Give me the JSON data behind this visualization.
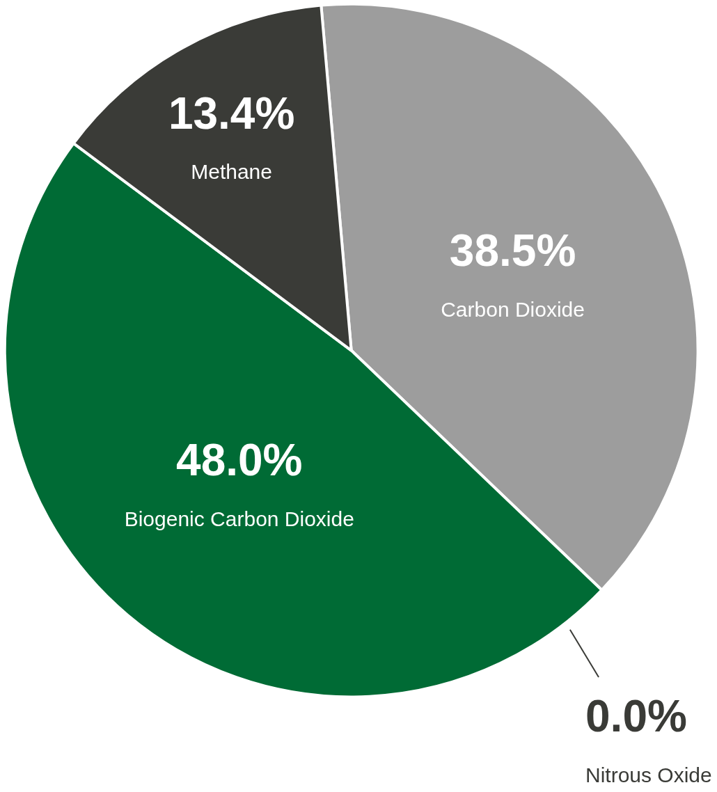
{
  "chart_data": {
    "type": "pie",
    "categories": [
      "Carbon Dioxide",
      "Nitrous Oxide",
      "Biogenic Carbon Dioxide",
      "Methane"
    ],
    "values": [
      38.5,
      0.0,
      48.0,
      13.4
    ],
    "value_labels": [
      "38.5%",
      "0.0%",
      "48.0%",
      "13.4%"
    ],
    "colors": [
      "#9d9d9d",
      "#3a3b37",
      "#006b35",
      "#3a3b37"
    ],
    "legend": false
  }
}
